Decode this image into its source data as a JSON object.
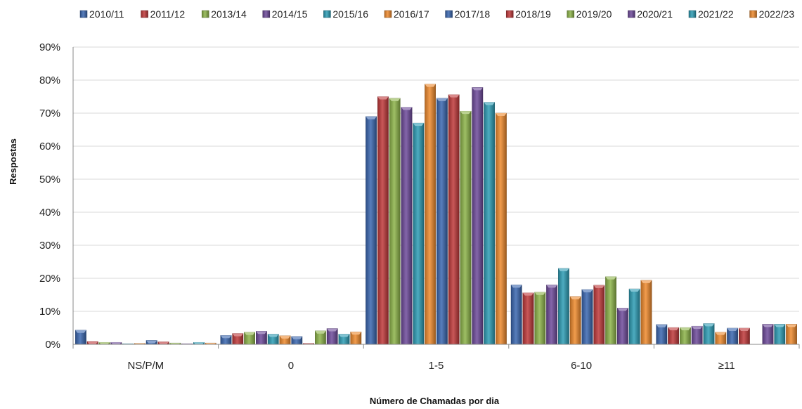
{
  "chart_data": {
    "type": "bar",
    "xlabel": "Número de Chamadas por dia",
    "ylabel": "Respostas",
    "ylim": [
      0,
      90
    ],
    "y_ticks": [
      "0%",
      "10%",
      "20%",
      "30%",
      "40%",
      "50%",
      "60%",
      "70%",
      "80%",
      "90%"
    ],
    "grid": true,
    "legend_position": "top",
    "categories": [
      "NS/P/M",
      "0",
      "1-5",
      "6-10",
      "≥11"
    ],
    "series": [
      {
        "name": "2010/11",
        "color": "#3A67B0",
        "values": [
          4.3,
          2.7,
          69.0,
          18.0,
          6.0
        ]
      },
      {
        "name": "2011/12",
        "color": "#C0393B",
        "values": [
          0.9,
          3.3,
          75.0,
          15.6,
          5.1
        ]
      },
      {
        "name": "2013/14",
        "color": "#8DB44A",
        "values": [
          0.6,
          3.7,
          74.5,
          15.8,
          5.1
        ]
      },
      {
        "name": "2014/15",
        "color": "#6E4B9B",
        "values": [
          0.6,
          4.0,
          71.8,
          18.0,
          5.5
        ]
      },
      {
        "name": "2015/16",
        "color": "#2E9DB5",
        "values": [
          0.2,
          3.1,
          67.0,
          23.0,
          6.3
        ]
      },
      {
        "name": "2016/17",
        "color": "#EE8A2E",
        "values": [
          0.3,
          2.6,
          78.8,
          14.5,
          3.7
        ]
      },
      {
        "name": "2017/18",
        "color": "#3A67B0",
        "values": [
          1.2,
          2.4,
          74.5,
          16.6,
          4.9
        ]
      },
      {
        "name": "2018/19",
        "color": "#C0393B",
        "values": [
          0.8,
          0.3,
          75.6,
          17.9,
          4.9
        ]
      },
      {
        "name": "2019/20",
        "color": "#8DB44A",
        "values": [
          0.4,
          4.1,
          70.6,
          20.5,
          0.0
        ]
      },
      {
        "name": "2020/21",
        "color": "#6E4B9B",
        "values": [
          0.2,
          4.8,
          77.8,
          11.0,
          6.1
        ]
      },
      {
        "name": "2021/22",
        "color": "#2E9DB5",
        "values": [
          0.6,
          3.1,
          73.3,
          16.8,
          6.1
        ]
      },
      {
        "name": "2022/23",
        "color": "#EE8A2E",
        "values": [
          0.4,
          3.8,
          70.0,
          19.4,
          6.1
        ]
      }
    ]
  }
}
